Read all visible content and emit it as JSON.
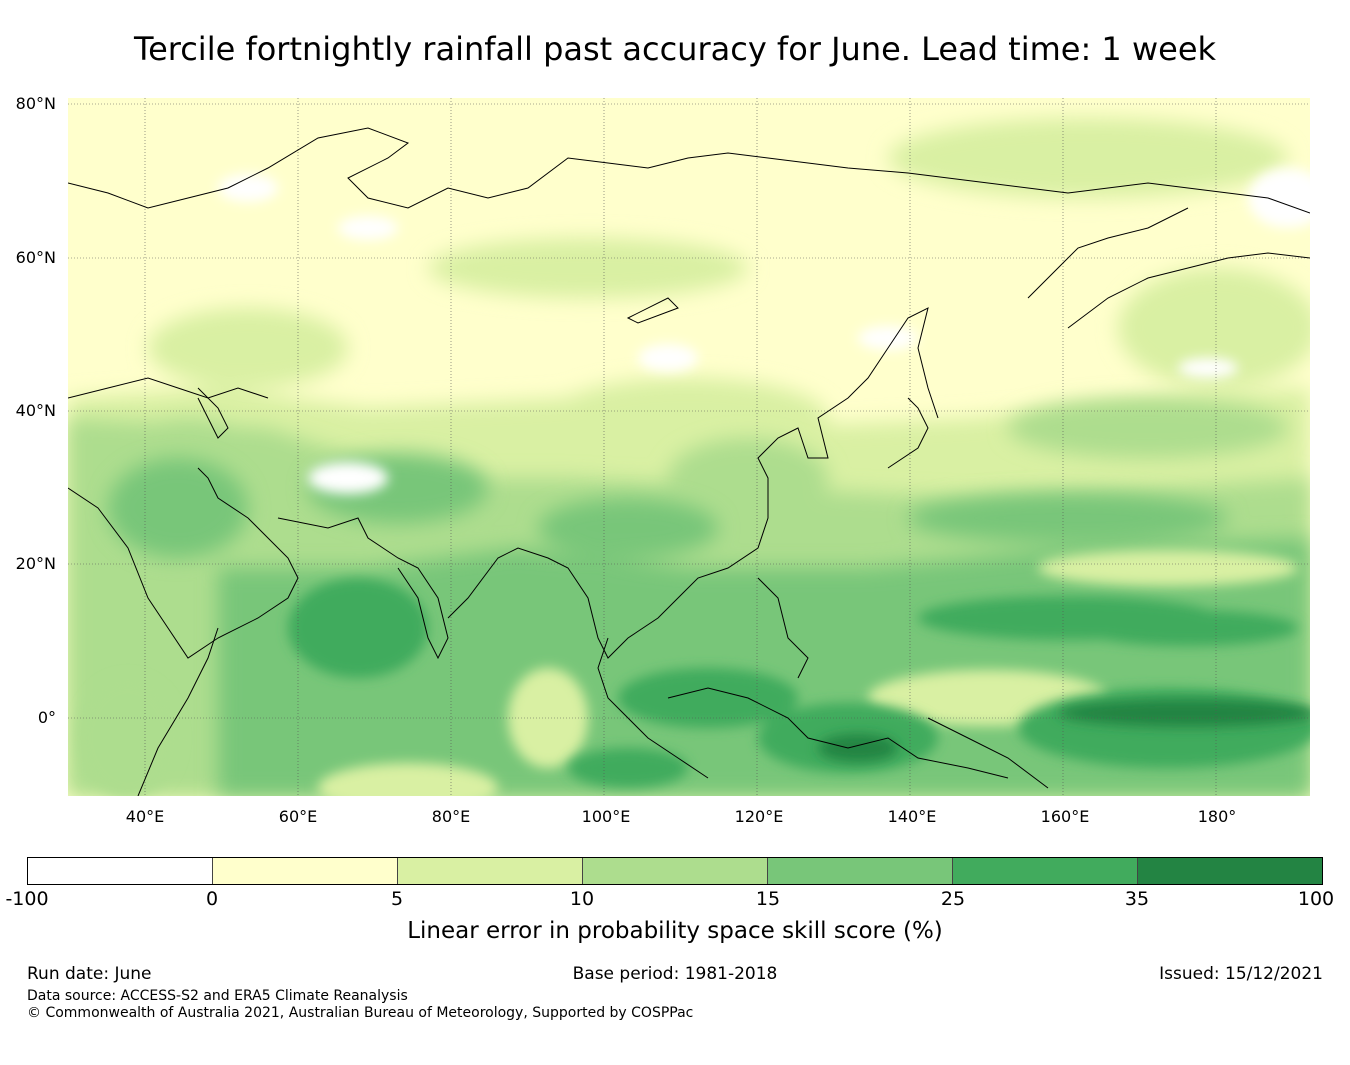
{
  "title": "Tercile fortnightly rainfall past accuracy for June. Lead time: 1 week",
  "map": {
    "lat_labels": [
      "80°N",
      "60°N",
      "40°N",
      "20°N",
      "0°"
    ],
    "lon_labels": [
      "40°E",
      "60°E",
      "80°E",
      "100°E",
      "120°E",
      "140°E",
      "160°E",
      "180°"
    ]
  },
  "colorbar": {
    "ticks": [
      "-100",
      "0",
      "5",
      "10",
      "15",
      "25",
      "35",
      "100"
    ],
    "colors": [
      "#ffffff",
      "#ffffcc",
      "#d9f0a3",
      "#addd8e",
      "#78c679",
      "#41ab5d",
      "#238443"
    ],
    "label": "Linear error in probability space skill score (%)"
  },
  "footer": {
    "run_date": "Run date: June",
    "base_period": "Base period: 1981-2018",
    "issued": "Issued: 15/12/2021",
    "data_source": "Data source: ACCESS-S2 and ERA5 Climate Reanalysis",
    "copyright": "© Commonwealth of Australia 2021, Australian Bureau of Meteorology, Supported by COSPPac"
  }
}
